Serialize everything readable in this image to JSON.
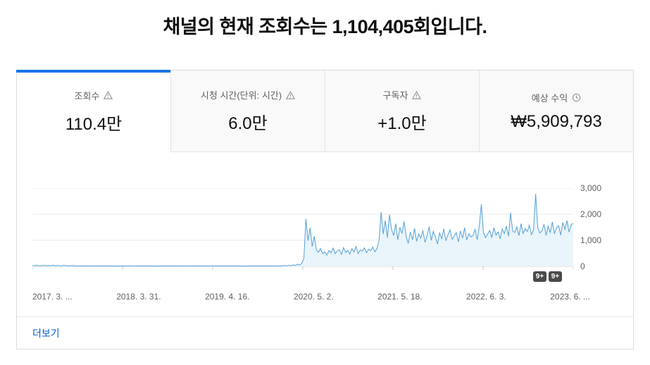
{
  "header": {
    "title": "채널의 현재 조회수는 1,104,405회입니다."
  },
  "colors": {
    "accent": "#1a73e8",
    "line": "#55a0d6",
    "fill": "#e9f4fb",
    "link": "#065fd4"
  },
  "tabs": [
    {
      "label": "조회수",
      "icon": "warning-icon",
      "value": "110.4만",
      "active": true
    },
    {
      "label": "시청 시간(단위: 시간)",
      "icon": "warning-icon",
      "value": "6.0만",
      "active": false
    },
    {
      "label": "구독자",
      "icon": "warning-icon",
      "value": "+1.0만",
      "active": false
    },
    {
      "label": "예상 수익",
      "icon": "clock-icon",
      "value": "₩5,909,793",
      "active": false
    }
  ],
  "chart_data": {
    "type": "area",
    "title": "",
    "xlabel": "",
    "ylabel": "",
    "x_tick_labels": [
      "2017. 3. ...",
      "2018. 3. 31.",
      "2019. 4. 16.",
      "2020. 5. 2.",
      "2021. 5. 18.",
      "2022. 6. 3.",
      "2023. 6. ..."
    ],
    "y_ticks": [
      0,
      1000,
      2000,
      3000
    ],
    "y_tick_labels": [
      "0",
      "1,000",
      "2,000",
      "3,000"
    ],
    "ylim": [
      0,
      3000
    ],
    "grid": "horizontal",
    "legend": "none",
    "series": [
      {
        "name": "daily-views",
        "values": [
          38,
          22,
          45,
          18,
          30,
          26,
          41,
          15,
          33,
          24,
          47,
          20,
          36,
          28,
          19,
          42,
          25,
          31,
          17,
          35,
          12,
          18,
          9,
          22,
          15,
          11,
          25,
          14,
          19,
          8,
          16,
          21,
          12,
          17,
          10,
          23,
          13,
          19,
          11,
          15,
          12,
          18,
          9,
          22,
          15,
          11,
          25,
          14,
          19,
          8,
          16,
          21,
          12,
          17,
          10,
          23,
          13,
          19,
          11,
          15,
          12,
          18,
          9,
          22,
          15,
          11,
          25,
          14,
          19,
          8,
          16,
          21,
          12,
          17,
          10,
          23,
          13,
          19,
          11,
          15,
          12,
          18,
          9,
          22,
          15,
          11,
          25,
          14,
          19,
          8,
          16,
          21,
          12,
          17,
          10,
          23,
          13,
          19,
          11,
          15,
          12,
          18,
          9,
          22,
          15,
          11,
          25,
          14,
          19,
          8,
          16,
          21,
          12,
          17,
          10,
          23,
          13,
          19,
          11,
          15,
          20,
          35,
          15,
          40,
          25,
          60,
          30,
          80,
          45,
          120,
          300,
          1820,
          980,
          1480,
          760,
          1150,
          620,
          540,
          680,
          490,
          560,
          430,
          610,
          520,
          700,
          480,
          590,
          640,
          450,
          720,
          530,
          610,
          470,
          680,
          550,
          760,
          490,
          630,
          580,
          710,
          520,
          660,
          600,
          740,
          560,
          690,
          980,
          2080,
          1240,
          1760,
          1100,
          1980,
          1420,
          1180,
          1640,
          1020,
          1500,
          1260,
          1720,
          1140,
          880,
          1320,
          1020,
          1460,
          960,
          1240,
          1080,
          1380,
          920,
          1180,
          1520,
          1000,
          1340,
          1120,
          860,
          1280,
          1060,
          1440,
          980,
          1220,
          1400,
          1040,
          1160,
          1300,
          940,
          1360,
          1080,
          1480,
          1010,
          1250,
          1130,
          1180,
          1420,
          1020,
          1560,
          2380,
          1300,
          1100,
          1240,
          1380,
          1100,
          1480,
          1200,
          1320,
          1060,
          1440,
          1260,
          1540,
          1150,
          2060,
          1350,
          1300,
          1520,
          1180,
          1640,
          1260,
          1450,
          1340,
          1580,
          1220,
          1400,
          2780,
          1500,
          1280,
          1350,
          1620,
          1190,
          1540,
          1300,
          1700,
          1260,
          1480,
          1560,
          1200,
          1680,
          1420,
          1760,
          1310,
          1590,
          1650
        ]
      }
    ]
  },
  "chart_badges": [
    "9+",
    "9+"
  ],
  "footer": {
    "more_label": "더보기"
  }
}
